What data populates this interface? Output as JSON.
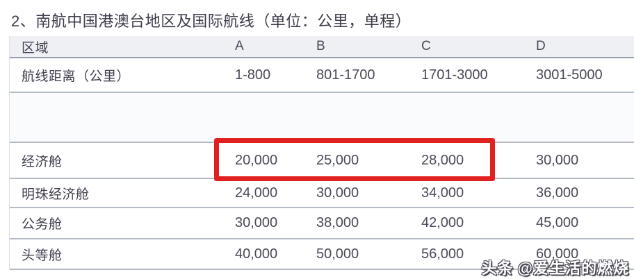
{
  "title": "2、南航中国港澳台地区及国际航线（单位：公里，单程）",
  "table": {
    "columns": {
      "region": "区域",
      "a": "A",
      "b": "B",
      "c": "C",
      "d": "D"
    },
    "rows": [
      {
        "label": "航线距离（公里）",
        "values": [
          "1-800",
          "801-1700",
          "1701-3000",
          "3001-5000"
        ]
      },
      {
        "label": "",
        "values": [
          "",
          "",
          "",
          ""
        ]
      },
      {
        "label": "经济舱",
        "values": [
          "20,000",
          "25,000",
          "28,000",
          "30,000"
        ]
      },
      {
        "label": "明珠经济舱",
        "values": [
          "24,000",
          "30,000",
          "34,000",
          "36,000"
        ]
      },
      {
        "label": "公务舱",
        "values": [
          "30,000",
          "38,000",
          "42,000",
          "45,000"
        ]
      },
      {
        "label": "头等舱",
        "values": [
          "40,000",
          "50,000",
          "56,000",
          "60,000"
        ]
      }
    ]
  },
  "highlight": {
    "color": "#e12020",
    "target": "经济舱 row, columns A–C (20,000 / 25,000 / 28,000)"
  },
  "watermark": {
    "brand": "头条",
    "handle": "@爱生活的燃烧"
  },
  "colors": {
    "header_background": "#eef0f3",
    "text": "#403e4d",
    "row_line": "#b3bac5",
    "highlight_red": "#e12020",
    "background": "#ffffff"
  }
}
